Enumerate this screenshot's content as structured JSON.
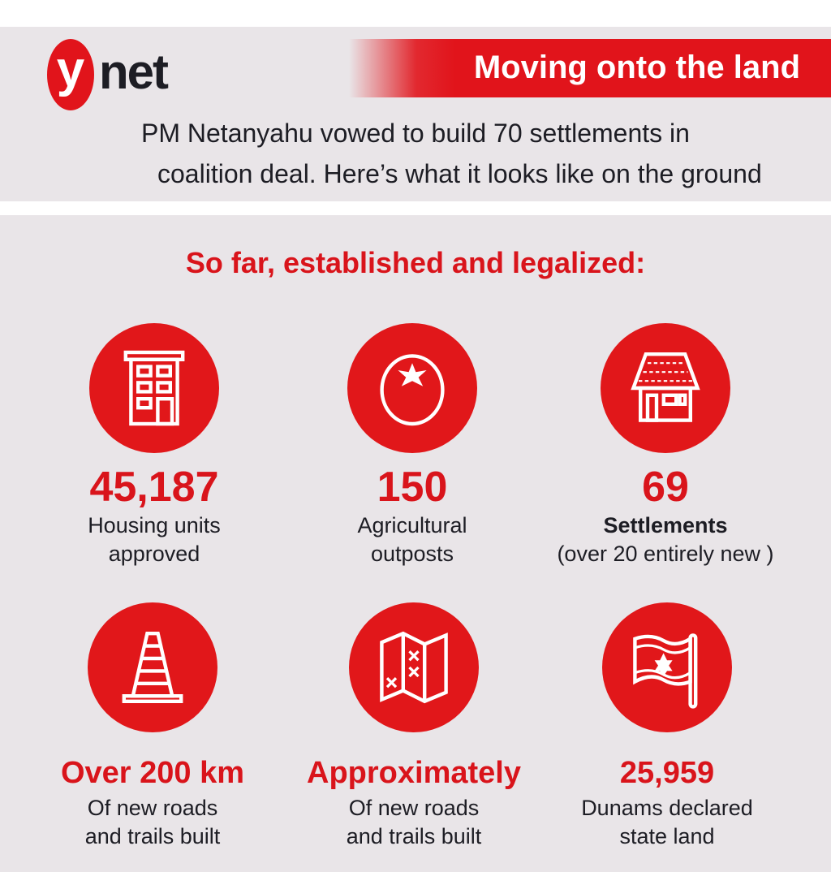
{
  "header": {
    "logo": "ynet",
    "logo_letter": "y",
    "logo_rest": "net",
    "banner_title": "Moving onto the land",
    "subtitle_line1": "PM Netanyahu vowed to build 70 settlements in",
    "subtitle_line2": "coalition deal. Here’s what it looks like on the ground"
  },
  "main": {
    "section_title": "So far, established and legalized:",
    "stats": [
      {
        "icon": "building-icon",
        "value": "45,187",
        "label1": "Housing units",
        "label2": "approved"
      },
      {
        "icon": "tomato-icon",
        "value": "150",
        "label1": "Agricultural",
        "label2": "outposts"
      },
      {
        "icon": "house-icon",
        "value": "69",
        "label1": "Settlements",
        "label2": "(over 20 entirely new )"
      },
      {
        "icon": "traffic-cone-icon",
        "value": "Over 200 km",
        "label1": "Of new roads",
        "label2": "and trails built"
      },
      {
        "icon": "map-icon",
        "value": "Approximately",
        "label1": "Of new roads",
        "label2": "and trails built"
      },
      {
        "icon": "israel-flag-icon",
        "value": "25,959",
        "label1": "Dunams declared",
        "label2": "state land"
      }
    ]
  },
  "colors": {
    "accent": "#e1141b",
    "text": "#1d1d24",
    "background": "#e9e5e8"
  }
}
